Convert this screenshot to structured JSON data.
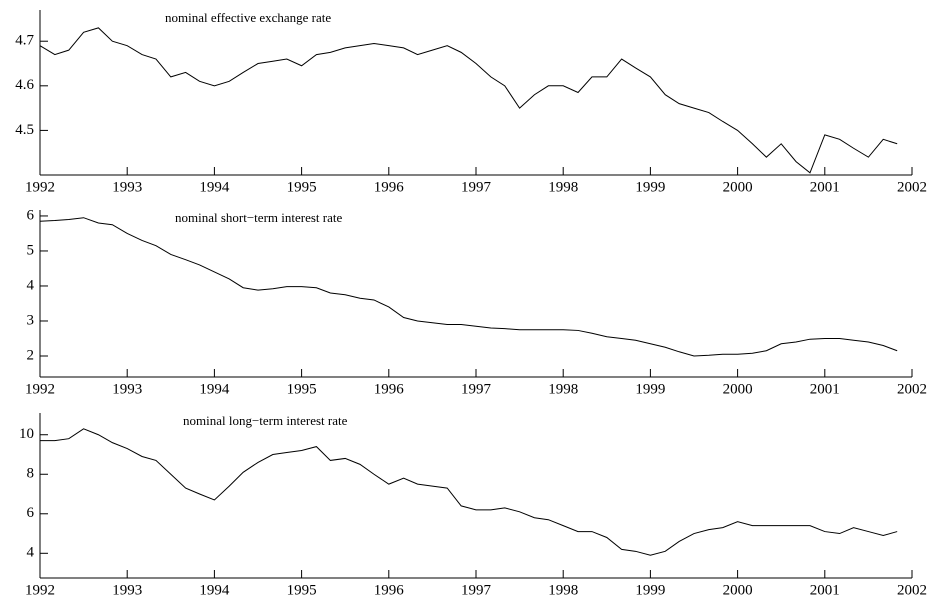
{
  "chart_data": [
    {
      "type": "line",
      "title": "nominal effective exchange rate",
      "color": "#000000",
      "x": [
        1992.0,
        1992.17,
        1992.33,
        1992.5,
        1992.67,
        1992.83,
        1993.0,
        1993.17,
        1993.33,
        1993.5,
        1993.67,
        1993.83,
        1994.0,
        1994.17,
        1994.33,
        1994.5,
        1994.67,
        1994.83,
        1995.0,
        1995.17,
        1995.33,
        1995.5,
        1995.67,
        1995.83,
        1996.0,
        1996.17,
        1996.33,
        1996.5,
        1996.67,
        1996.83,
        1997.0,
        1997.17,
        1997.33,
        1997.5,
        1997.67,
        1997.83,
        1998.0,
        1998.17,
        1998.33,
        1998.5,
        1998.67,
        1998.83,
        1999.0,
        1999.17,
        1999.33,
        1999.5,
        1999.67,
        1999.83,
        2000.0,
        2000.17,
        2000.33,
        2000.5,
        2000.67,
        2000.83,
        2001.0,
        2001.17,
        2001.33,
        2001.5,
        2001.67,
        2001.83
      ],
      "values": [
        4.69,
        4.67,
        4.68,
        4.72,
        4.73,
        4.7,
        4.69,
        4.67,
        4.66,
        4.62,
        4.63,
        4.61,
        4.6,
        4.61,
        4.63,
        4.65,
        4.655,
        4.66,
        4.645,
        4.67,
        4.675,
        4.685,
        4.69,
        4.695,
        4.69,
        4.685,
        4.67,
        4.68,
        4.69,
        4.675,
        4.65,
        4.62,
        4.6,
        4.55,
        4.58,
        4.6,
        4.6,
        4.585,
        4.62,
        4.62,
        4.66,
        4.64,
        4.62,
        4.58,
        4.56,
        4.55,
        4.54,
        4.52,
        4.5,
        4.47,
        4.44,
        4.47,
        4.43,
        4.405,
        4.49,
        4.48,
        4.46,
        4.44,
        4.48,
        4.47
      ],
      "xlim": [
        1992,
        2002
      ],
      "xticks": [
        1992,
        1993,
        1994,
        1995,
        1996,
        1997,
        1998,
        1999,
        2000,
        2001,
        2002
      ],
      "ylim": [
        4.4,
        4.77
      ],
      "yticks": [
        4.5,
        4.6,
        4.7
      ]
    },
    {
      "type": "line",
      "title": "nominal short−term interest rate",
      "color": "#000000",
      "x": [
        1992.0,
        1992.17,
        1992.33,
        1992.5,
        1992.67,
        1992.83,
        1993.0,
        1993.17,
        1993.33,
        1993.5,
        1993.67,
        1993.83,
        1994.0,
        1994.17,
        1994.33,
        1994.5,
        1994.67,
        1994.83,
        1995.0,
        1995.17,
        1995.33,
        1995.5,
        1995.67,
        1995.83,
        1996.0,
        1996.17,
        1996.33,
        1996.5,
        1996.67,
        1996.83,
        1997.0,
        1997.17,
        1997.33,
        1997.5,
        1997.67,
        1997.83,
        1998.0,
        1998.17,
        1998.33,
        1998.5,
        1998.67,
        1998.83,
        1999.0,
        1999.17,
        1999.33,
        1999.5,
        1999.67,
        1999.83,
        2000.0,
        2000.17,
        2000.33,
        2000.5,
        2000.67,
        2000.83,
        2001.0,
        2001.17,
        2001.33,
        2001.5,
        2001.67,
        2001.83
      ],
      "values": [
        5.85,
        5.87,
        5.9,
        5.95,
        5.8,
        5.75,
        5.5,
        5.3,
        5.15,
        4.9,
        4.75,
        4.6,
        4.4,
        4.2,
        3.95,
        3.88,
        3.92,
        3.98,
        3.98,
        3.95,
        3.8,
        3.75,
        3.65,
        3.6,
        3.4,
        3.1,
        3.0,
        2.95,
        2.9,
        2.9,
        2.85,
        2.8,
        2.78,
        2.75,
        2.75,
        2.75,
        2.75,
        2.73,
        2.65,
        2.55,
        2.5,
        2.45,
        2.35,
        2.25,
        2.12,
        2.0,
        2.02,
        2.05,
        2.05,
        2.08,
        2.15,
        2.35,
        2.4,
        2.48,
        2.5,
        2.5,
        2.45,
        2.4,
        2.3,
        2.15
      ],
      "xlim": [
        1992,
        2002
      ],
      "xticks": [
        1992,
        1993,
        1994,
        1995,
        1996,
        1997,
        1998,
        1999,
        2000,
        2001,
        2002
      ],
      "ylim": [
        1.4,
        6.17
      ],
      "yticks": [
        2,
        3,
        4,
        5,
        6
      ]
    },
    {
      "type": "line",
      "title": "nominal long−term interest rate",
      "color": "#000000",
      "x": [
        1992.0,
        1992.17,
        1992.33,
        1992.5,
        1992.67,
        1992.83,
        1993.0,
        1993.17,
        1993.33,
        1993.5,
        1993.67,
        1993.83,
        1994.0,
        1994.17,
        1994.33,
        1994.5,
        1994.67,
        1994.83,
        1995.0,
        1995.17,
        1995.33,
        1995.5,
        1995.67,
        1995.83,
        1996.0,
        1996.17,
        1996.33,
        1996.5,
        1996.67,
        1996.83,
        1997.0,
        1997.17,
        1997.33,
        1997.5,
        1997.67,
        1997.83,
        1998.0,
        1998.17,
        1998.33,
        1998.5,
        1998.67,
        1998.83,
        1999.0,
        1999.17,
        1999.33,
        1999.5,
        1999.67,
        1999.83,
        2000.0,
        2000.17,
        2000.33,
        2000.5,
        2000.67,
        2000.83,
        2001.0,
        2001.17,
        2001.33,
        2001.5,
        2001.67,
        2001.83
      ],
      "values": [
        9.7,
        9.7,
        9.8,
        10.3,
        10.0,
        9.6,
        9.3,
        8.9,
        8.7,
        8.0,
        7.3,
        7.0,
        6.7,
        7.4,
        8.1,
        8.6,
        9.0,
        9.1,
        9.2,
        9.4,
        8.7,
        8.8,
        8.5,
        8.0,
        7.5,
        7.8,
        7.5,
        7.4,
        7.3,
        6.4,
        6.2,
        6.2,
        6.3,
        6.1,
        5.8,
        5.7,
        5.4,
        5.1,
        5.1,
        4.8,
        4.2,
        4.1,
        3.9,
        4.1,
        4.6,
        5.0,
        5.2,
        5.3,
        5.6,
        5.4,
        5.4,
        5.4,
        5.4,
        5.4,
        5.1,
        5.0,
        5.3,
        5.1,
        4.9,
        5.1
      ],
      "xlim": [
        1992,
        2002
      ],
      "xticks": [
        1992,
        1993,
        1994,
        1995,
        1996,
        1997,
        1998,
        1999,
        2000,
        2001,
        2002
      ],
      "ylim": [
        2.75,
        11.1
      ],
      "yticks": [
        4,
        6,
        8,
        10
      ]
    }
  ]
}
